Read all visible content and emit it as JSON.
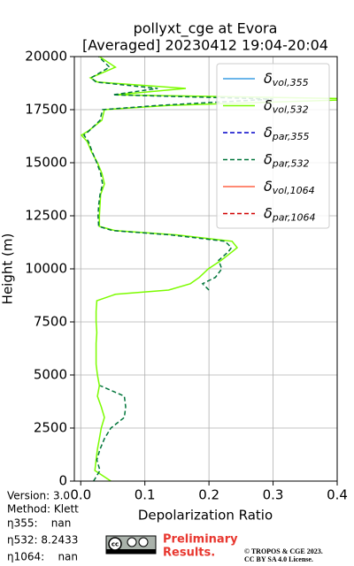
{
  "chart_data": {
    "type": "line",
    "title": [
      "pollyxt_cge at Evora",
      "[Averaged] 20230412 19:04-20:04"
    ],
    "xlabel": "Depolarization Ratio",
    "ylabel": "Height (m)",
    "y": [
      0,
      500,
      1000,
      1500,
      2000,
      2500,
      3000,
      3500,
      4000,
      4500,
      5000,
      5500,
      6000,
      6500,
      7000,
      7500,
      8000,
      8500,
      8800,
      9000,
      9300,
      9600,
      10000,
      10400,
      10800,
      11000,
      11300,
      11600,
      11800,
      12000,
      12500,
      13000,
      13500,
      14000,
      14500,
      15000,
      15500,
      16000,
      16300,
      16500,
      17000,
      17500,
      17700,
      18000,
      18200,
      18500,
      18800,
      19000,
      19500,
      20000
    ],
    "series": [
      {
        "name": "δvol,355",
        "color": "#3a9ee4",
        "dashed": false,
        "values": [
          null,
          null,
          null,
          null,
          null,
          null,
          null,
          null,
          null,
          null,
          null,
          null,
          null,
          null,
          null,
          null,
          null,
          null,
          null,
          null,
          null,
          null,
          null,
          null,
          null,
          null,
          null,
          null,
          null,
          null,
          null,
          null,
          null,
          null,
          null,
          null,
          null,
          null,
          null,
          null,
          null,
          null,
          null,
          null,
          null,
          null,
          null,
          null,
          null,
          null
        ]
      },
      {
        "name": "δvol,532",
        "color": "#7cfc00",
        "dashed": false,
        "values": [
          0.047,
          0.022,
          0.024,
          0.026,
          0.029,
          0.032,
          0.037,
          0.032,
          0.026,
          0.029,
          0.026,
          0.024,
          0.024,
          0.024,
          0.025,
          0.024,
          0.024,
          0.025,
          0.054,
          0.137,
          0.171,
          0.185,
          0.199,
          0.219,
          0.236,
          0.244,
          0.236,
          0.15,
          0.054,
          0.029,
          0.029,
          0.03,
          0.031,
          0.037,
          0.033,
          0.026,
          0.017,
          0.01,
          0.001,
          0.012,
          0.033,
          0.037,
          0.137,
          0.45,
          0.054,
          0.164,
          0.026,
          0.015,
          0.054,
          0.029
        ]
      },
      {
        "name": "δpar,355",
        "color": "#0000c8",
        "dashed": true,
        "values": [
          null,
          null,
          null,
          null,
          null,
          null,
          null,
          null,
          null,
          null,
          null,
          null,
          null,
          null,
          null,
          null,
          null,
          null,
          null,
          null,
          null,
          null,
          null,
          null,
          null,
          null,
          null,
          null,
          null,
          null,
          null,
          null,
          null,
          null,
          null,
          null,
          null,
          null,
          null,
          null,
          null,
          null,
          null,
          null,
          null,
          null,
          null,
          null,
          null,
          null
        ]
      },
      {
        "name": "δpar,532",
        "color": "#00753a",
        "dashed": true,
        "values": [
          0.02,
          0.03,
          0.025,
          0.03,
          0.037,
          0.047,
          0.068,
          0.07,
          0.068,
          0.03,
          null,
          null,
          null,
          null,
          null,
          null,
          null,
          null,
          null,
          0.2,
          0.19,
          0.21,
          0.22,
          0.215,
          0.23,
          0.235,
          0.225,
          0.14,
          0.05,
          0.028,
          0.027,
          0.028,
          0.03,
          0.034,
          0.031,
          0.025,
          0.018,
          0.012,
          0.005,
          0.013,
          0.03,
          0.034,
          0.12,
          0.3,
          0.05,
          0.12,
          0.024,
          0.016,
          0.045,
          0.028
        ]
      },
      {
        "name": "δvol,1064",
        "color": "#ff6347",
        "dashed": false,
        "values": [
          null,
          null,
          null,
          null,
          null,
          null,
          null,
          null,
          null,
          null,
          null,
          null,
          null,
          null,
          null,
          null,
          null,
          null,
          null,
          null,
          null,
          null,
          null,
          null,
          null,
          null,
          null,
          null,
          null,
          null,
          null,
          null,
          null,
          null,
          null,
          null,
          null,
          null,
          null,
          null,
          null,
          null,
          null,
          null,
          null,
          null,
          null,
          null,
          null,
          null
        ]
      },
      {
        "name": "δpar,1064",
        "color": "#d00000",
        "dashed": true,
        "values": [
          null,
          null,
          null,
          null,
          null,
          null,
          null,
          null,
          null,
          null,
          null,
          null,
          null,
          null,
          null,
          null,
          null,
          null,
          null,
          null,
          null,
          null,
          null,
          null,
          null,
          null,
          null,
          null,
          null,
          null,
          null,
          null,
          null,
          null,
          null,
          null,
          null,
          null,
          null,
          null,
          null,
          null,
          null,
          null,
          null,
          null,
          null,
          null,
          null,
          null
        ]
      }
    ],
    "xlim": [
      -0.01,
      0.4
    ],
    "ylim": [
      0,
      20000
    ],
    "xticks": [
      {
        "value": 0,
        "label": "0.0"
      },
      0.1,
      0.2,
      0.3,
      0.4
    ],
    "yticks": [
      0,
      2500,
      5000,
      7500,
      10000,
      12500,
      15000,
      17500,
      20000
    ],
    "grid": true,
    "legend": "upper right"
  },
  "info": [
    "Version: 3.0",
    "Method: Klett",
    "η355:    nan",
    "η532: 8.2433",
    "η1064:    nan"
  ],
  "footer": {
    "preliminary": [
      "Preliminary",
      "Results."
    ],
    "copyright": [
      "© TROPOS & CGE 2023.",
      "CC BY SA 4.0 License."
    ]
  }
}
